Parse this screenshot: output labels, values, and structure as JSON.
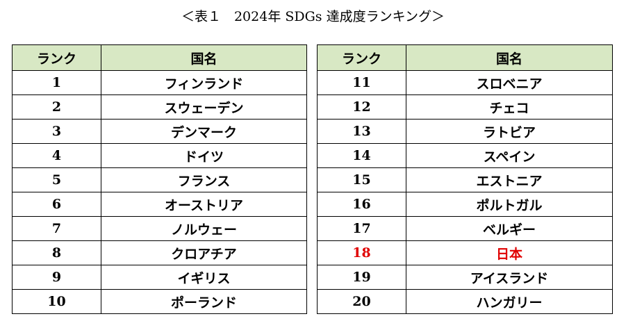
{
  "title": "＜表１　2024年 SDGs 達成度ランキング＞",
  "headers": {
    "rank": "ランク",
    "country": "国名"
  },
  "highlight_color": "#e00000",
  "header_bg": "#d8e8c4",
  "left_rows": [
    {
      "rank": "1",
      "country": "フィンランド"
    },
    {
      "rank": "2",
      "country": "スウェーデン"
    },
    {
      "rank": "3",
      "country": "デンマーク"
    },
    {
      "rank": "4",
      "country": "ドイツ"
    },
    {
      "rank": "5",
      "country": "フランス"
    },
    {
      "rank": "6",
      "country": "オーストリア"
    },
    {
      "rank": "7",
      "country": "ノルウェー"
    },
    {
      "rank": "8",
      "country": "クロアチア"
    },
    {
      "rank": "9",
      "country": "イギリス"
    },
    {
      "rank": "10",
      "country": "ポーランド"
    }
  ],
  "right_rows": [
    {
      "rank": "11",
      "country": "スロベニア"
    },
    {
      "rank": "12",
      "country": "チェコ"
    },
    {
      "rank": "13",
      "country": "ラトビア"
    },
    {
      "rank": "14",
      "country": "スペイン"
    },
    {
      "rank": "15",
      "country": "エストニア"
    },
    {
      "rank": "16",
      "country": "ポルトガル"
    },
    {
      "rank": "17",
      "country": "ベルギー"
    },
    {
      "rank": "18",
      "country": "日本",
      "highlight": true
    },
    {
      "rank": "19",
      "country": "アイスランド"
    },
    {
      "rank": "20",
      "country": "ハンガリー"
    }
  ]
}
